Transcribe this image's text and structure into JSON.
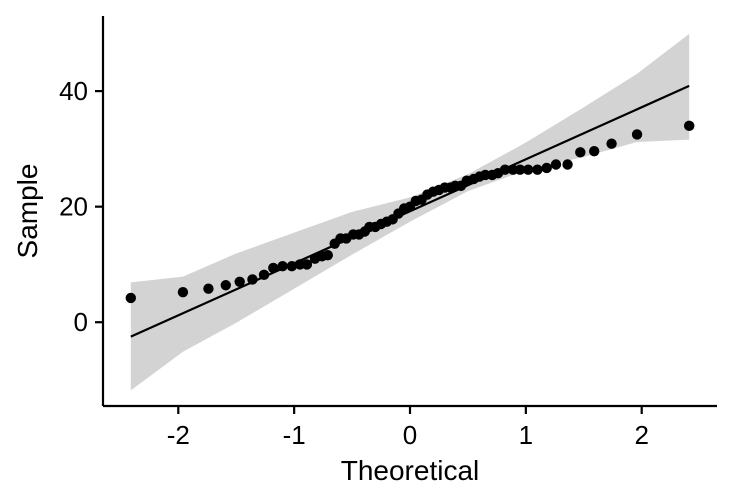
{
  "chart_data": {
    "type": "scatter",
    "subtype": "qq-plot",
    "title": "",
    "xlabel": "Theoretical",
    "ylabel": "Sample",
    "xlim": [
      -2.65,
      2.65
    ],
    "ylim": [
      -14.5,
      53
    ],
    "x_ticks": [
      -2,
      -1,
      0,
      1,
      2
    ],
    "x_tick_labels": [
      "-2",
      "-1",
      "0",
      "1",
      "2"
    ],
    "y_ticks": [
      0,
      20,
      40
    ],
    "y_tick_labels": [
      "0",
      "20",
      "40"
    ],
    "grid": false,
    "legend": "none",
    "colors": {
      "points": "#000000",
      "line": "#000000",
      "band": "#d3d3d3",
      "axis": "#000000"
    },
    "points": {
      "x": [
        -2.41,
        -1.96,
        -1.74,
        -1.59,
        -1.47,
        -1.36,
        -1.26,
        -1.18,
        -1.1,
        -1.02,
        -0.95,
        -0.89,
        -0.82,
        -0.76,
        -0.71,
        -0.65,
        -0.6,
        -0.55,
        -0.49,
        -0.44,
        -0.39,
        -0.35,
        -0.3,
        -0.25,
        -0.2,
        -0.15,
        -0.1,
        -0.05,
        0.0,
        0.05,
        0.1,
        0.15,
        0.2,
        0.25,
        0.3,
        0.35,
        0.39,
        0.44,
        0.49,
        0.55,
        0.6,
        0.65,
        0.71,
        0.76,
        0.82,
        0.89,
        0.95,
        1.02,
        1.1,
        1.18,
        1.26,
        1.36,
        1.47,
        1.59,
        1.74,
        1.96,
        2.41
      ],
      "y": [
        4.2,
        5.2,
        5.8,
        6.4,
        7.0,
        7.4,
        8.2,
        9.4,
        9.7,
        9.7,
        10.0,
        10.0,
        11.0,
        11.4,
        11.6,
        13.6,
        14.5,
        14.5,
        15.2,
        15.2,
        15.7,
        16.5,
        16.5,
        17.0,
        17.4,
        17.8,
        18.8,
        19.7,
        20.0,
        21.0,
        21.2,
        22.1,
        22.6,
        22.9,
        23.3,
        23.3,
        23.6,
        23.6,
        24.5,
        24.8,
        25.2,
        25.5,
        25.5,
        25.8,
        26.4,
        26.4,
        26.4,
        26.4,
        26.4,
        26.7,
        27.3,
        27.3,
        29.4,
        29.6,
        30.9,
        32.5,
        34.0
      ]
    },
    "reference_line": {
      "x": [
        -2.41,
        2.41
      ],
      "y": [
        -2.5,
        40.9
      ]
    },
    "confidence_band": {
      "x": [
        -2.41,
        -1.96,
        -1.5,
        -1.0,
        -0.5,
        0.0,
        0.5,
        1.0,
        1.5,
        1.96,
        2.41
      ],
      "lower": [
        -11.8,
        -5.1,
        -0.1,
        5.8,
        11.7,
        17.4,
        22.7,
        26.3,
        28.6,
        31.2,
        31.6
      ],
      "upper": [
        6.9,
        7.9,
        11.9,
        15.5,
        19.1,
        21.6,
        25.6,
        31.1,
        37.2,
        43.0,
        49.9
      ]
    }
  }
}
